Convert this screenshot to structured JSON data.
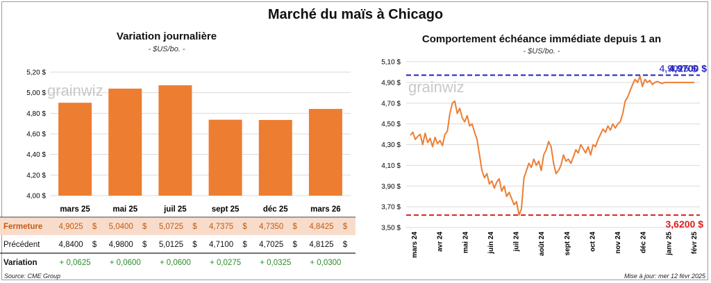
{
  "title": "Marché du maïs à Chicago",
  "watermark": "grainwiz",
  "source": "Source: CME Group",
  "updated": "Mise à jour: mer 12 févr 2025",
  "colors": {
    "bar": "#ed7d31",
    "line": "#ed7d31",
    "max": "#1f1fbf",
    "min": "#e01b1b",
    "green": "#2a8c2a",
    "closeRow": "#f8dccb",
    "closeText": "#c55a11"
  },
  "chart_data": [
    {
      "type": "bar",
      "title": "Variation journalière",
      "subtitle": "- $US/bo. -",
      "ylim": [
        4.0,
        5.2
      ],
      "yticks": [
        "4,00 $",
        "4,20 $",
        "4,40 $",
        "4,60 $",
        "4,80 $",
        "5,00 $",
        "5,20 $"
      ],
      "categories": [
        "mars 25",
        "mai 25",
        "juil 25",
        "sept 25",
        "déc 25",
        "mars 26"
      ],
      "values": [
        4.9025,
        5.04,
        5.0725,
        4.7375,
        4.735,
        4.8425
      ],
      "table": {
        "rows": [
          {
            "label": "Fermeture",
            "values": [
              "4,9025",
              "5,0400",
              "5,0725",
              "4,7375",
              "4,7350",
              "4,8425"
            ],
            "suffix": "$"
          },
          {
            "label": "Précédent",
            "values": [
              "4,8400",
              "4,9800",
              "5,0125",
              "4,7100",
              "4,7025",
              "4,8125"
            ],
            "suffix": "$"
          },
          {
            "label": "Variation",
            "values": [
              "+ 0,0625",
              "+ 0,0600",
              "+ 0,0600",
              "+ 0,0275",
              "+ 0,0325",
              "+ 0,0300"
            ],
            "suffix": ""
          }
        ]
      }
    },
    {
      "type": "line",
      "title": "Comportement échéance immédiate depuis 1 an",
      "subtitle": "- $US/bo. -",
      "ylim": [
        3.5,
        5.1
      ],
      "yticks": [
        "3,50 $",
        "3,70 $",
        "3,90 $",
        "4,10 $",
        "4,30 $",
        "4,50 $",
        "4,70 $",
        "4,90 $",
        "5,10 $"
      ],
      "xticks": [
        "mars 24",
        "avr 24",
        "mai 24",
        "juin 24",
        "juil 24",
        "août 24",
        "sept 24",
        "oct 24",
        "nov 24",
        "déc 24",
        "janv 25",
        "févr 25"
      ],
      "max_line": 4.97,
      "max_label": "4,9700 $",
      "max_label_overlap": "4,9025 $",
      "min_line": 3.62,
      "min_label": "3,6200 $",
      "x": [
        0,
        0.1,
        0.2,
        0.3,
        0.4,
        0.5,
        0.6,
        0.7,
        0.8,
        0.9,
        1.0,
        1.1,
        1.2,
        1.3,
        1.4,
        1.5,
        1.6,
        1.7,
        1.8,
        1.9,
        2.0,
        2.1,
        2.2,
        2.3,
        2.4,
        2.5,
        2.6,
        2.7,
        2.8,
        2.9,
        3.0,
        3.1,
        3.2,
        3.3,
        3.4,
        3.5,
        3.6,
        3.7,
        3.8,
        3.9,
        4.0,
        4.1,
        4.2,
        4.3,
        4.4,
        4.5,
        4.6,
        4.7,
        4.8,
        4.9,
        5.0,
        5.1,
        5.2,
        5.3,
        5.4,
        5.5,
        5.6,
        5.7,
        5.8,
        5.9,
        6.0,
        6.1,
        6.2,
        6.3,
        6.4,
        6.5,
        6.6,
        6.7,
        6.8,
        6.9,
        7.0,
        7.1,
        7.2,
        7.3,
        7.4,
        7.5,
        7.6,
        7.7,
        7.8,
        7.9,
        8.0,
        8.1,
        8.2,
        8.3,
        8.4,
        8.5,
        8.6,
        8.7,
        8.8,
        8.9,
        9.0,
        9.1,
        9.2,
        9.3,
        9.4,
        9.5,
        9.6,
        9.7,
        9.8,
        9.9,
        10.0,
        10.1,
        10.2,
        10.3,
        10.4,
        10.5,
        10.6,
        10.7,
        10.8,
        10.9,
        11.0,
        11.1,
        11.2,
        11.3,
        11.4,
        11.5
      ],
      "y": [
        4.39,
        4.42,
        4.35,
        4.38,
        4.4,
        4.3,
        4.41,
        4.32,
        4.36,
        4.28,
        4.37,
        4.31,
        4.34,
        4.29,
        4.4,
        4.43,
        4.6,
        4.7,
        4.72,
        4.6,
        4.65,
        4.56,
        4.52,
        4.58,
        4.48,
        4.5,
        4.42,
        4.35,
        4.2,
        4.05,
        3.98,
        4.02,
        3.92,
        3.95,
        3.88,
        3.94,
        3.97,
        3.85,
        3.9,
        3.8,
        3.84,
        3.78,
        3.72,
        3.75,
        3.62,
        3.68,
        3.98,
        4.05,
        4.12,
        4.08,
        4.16,
        4.1,
        4.14,
        4.05,
        4.2,
        4.25,
        4.33,
        4.28,
        4.12,
        4.02,
        4.05,
        4.1,
        4.2,
        4.14,
        4.16,
        4.12,
        4.18,
        4.25,
        4.22,
        4.3,
        4.26,
        4.22,
        4.28,
        4.2,
        4.3,
        4.28,
        4.35,
        4.4,
        4.45,
        4.42,
        4.48,
        4.44,
        4.5,
        4.46,
        4.5,
        4.52,
        4.6,
        4.72,
        4.76,
        4.82,
        4.88,
        4.93,
        4.9,
        4.96,
        4.86,
        4.93,
        4.9,
        4.92,
        4.88,
        4.9,
        4.91,
        4.9,
        4.89,
        4.9,
        4.9,
        4.9,
        4.9,
        4.9,
        4.9,
        4.9,
        4.9,
        4.9,
        4.9,
        4.9,
        4.9,
        4.9
      ]
    }
  ]
}
